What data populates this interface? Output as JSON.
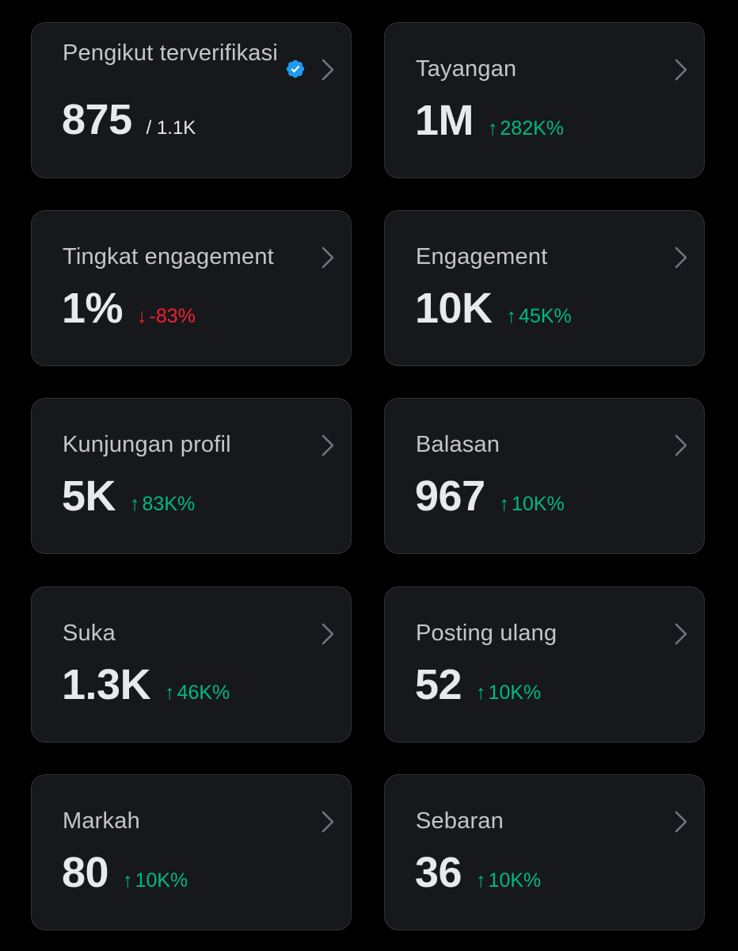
{
  "colors": {
    "background": "#000000",
    "card": "#16181c",
    "border": "#2f3336",
    "up": "#00ba7c",
    "down": "#f4212e",
    "verified": "#1d9bf0"
  },
  "cards": [
    {
      "title": "Pengikut terverifikasi",
      "value": "875",
      "sub": "/ 1.1K",
      "icon": "verified-badge-icon"
    },
    {
      "title": "Tayangan",
      "value": "1M",
      "change_arrow": "↑",
      "change": "282K%",
      "trend": "up"
    },
    {
      "title": "Tingkat engagement",
      "value": "1%",
      "change_arrow": "↓",
      "change": "-83%",
      "trend": "down"
    },
    {
      "title": "Engagement",
      "value": "10K",
      "change_arrow": "↑",
      "change": "45K%",
      "trend": "up"
    },
    {
      "title": "Kunjungan profil",
      "value": "5K",
      "change_arrow": "↑",
      "change": "83K%",
      "trend": "up"
    },
    {
      "title": "Balasan",
      "value": "967",
      "change_arrow": "↑",
      "change": "10K%",
      "trend": "up"
    },
    {
      "title": "Suka",
      "value": "1.3K",
      "change_arrow": "↑",
      "change": "46K%",
      "trend": "up"
    },
    {
      "title": "Posting ulang",
      "value": "52",
      "change_arrow": "↑",
      "change": "10K%",
      "trend": "up"
    },
    {
      "title": "Markah",
      "value": "80",
      "change_arrow": "↑",
      "change": "10K%",
      "trend": "up"
    },
    {
      "title": "Sebaran",
      "value": "36",
      "change_arrow": "↑",
      "change": "10K%",
      "trend": "up"
    }
  ]
}
